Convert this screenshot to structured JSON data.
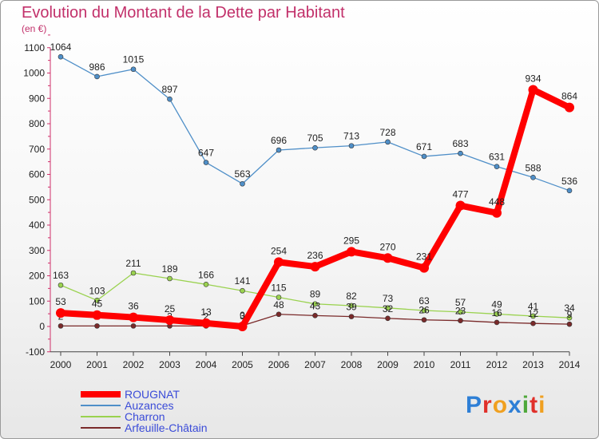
{
  "chart_data": {
    "type": "line",
    "title": "Evolution du Montant de la Dette par Habitant",
    "subtitle": "(en €)",
    "xlabel": "",
    "ylabel": "",
    "x": [
      "2000",
      "2001",
      "2002",
      "2003",
      "2004",
      "2005",
      "2006",
      "2007",
      "2008",
      "2009",
      "2010",
      "2011",
      "2012",
      "2013",
      "2014"
    ],
    "ylim": [
      -100,
      1100
    ],
    "yticks": [
      "-100",
      "0",
      "100",
      "200",
      "300",
      "400",
      "500",
      "600",
      "700",
      "800",
      "900",
      "1000",
      "1100"
    ],
    "grid": false,
    "legend_position": "bottom-left",
    "series": [
      {
        "name": "ROUGNAT",
        "color": "#ff0000",
        "emphasis": true,
        "values": [
          53,
          45,
          36,
          25,
          13,
          0,
          254,
          236,
          295,
          270,
          231,
          477,
          448,
          934,
          864
        ],
        "labels": [
          "53",
          "45",
          "36",
          "25",
          "13",
          "0",
          "254",
          "236",
          "295",
          "270",
          "231",
          "477",
          "448",
          "934",
          "864"
        ]
      },
      {
        "name": "Auzances",
        "color": "#4f8fc8",
        "values": [
          1064,
          986,
          1015,
          897,
          647,
          563,
          696,
          705,
          713,
          728,
          671,
          683,
          631,
          588,
          536
        ],
        "labels": [
          "1064",
          "986",
          "1015",
          "897",
          "647",
          "563",
          "696",
          "705",
          "713",
          "728",
          "671",
          "683",
          "631",
          "588",
          "536"
        ]
      },
      {
        "name": "Charron",
        "color": "#9ad24f",
        "values": [
          163,
          103,
          211,
          189,
          166,
          141,
          115,
          89,
          82,
          73,
          63,
          57,
          49,
          41,
          34
        ],
        "labels": [
          "163",
          "103",
          "211",
          "189",
          "166",
          "141",
          "115",
          "89",
          "82",
          "73",
          "63",
          "57",
          "49",
          "41",
          "34"
        ]
      },
      {
        "name": "Arfeuille-Châtain",
        "color": "#7a2a2a",
        "values": [
          2,
          2,
          2,
          2,
          2,
          3,
          48,
          43,
          39,
          32,
          26,
          23,
          16,
          12,
          9
        ],
        "labels": [
          "2",
          "2",
          "2",
          "2",
          "2",
          "3",
          "48",
          "43",
          "39",
          "32",
          "26",
          "23",
          "16",
          "12",
          "9"
        ]
      }
    ]
  },
  "logo": {
    "letters": [
      {
        "ch": "P",
        "color": "#2e7fd6"
      },
      {
        "ch": "r",
        "color": "#e0302a"
      },
      {
        "ch": "o",
        "color": "#f0a020"
      },
      {
        "ch": "x",
        "color": "#2e7fd6"
      },
      {
        "ch": "i",
        "color": "#4fa83a"
      },
      {
        "ch": "t",
        "color": "#e0302a"
      },
      {
        "ch": "i",
        "color": "#f0a020"
      }
    ]
  }
}
